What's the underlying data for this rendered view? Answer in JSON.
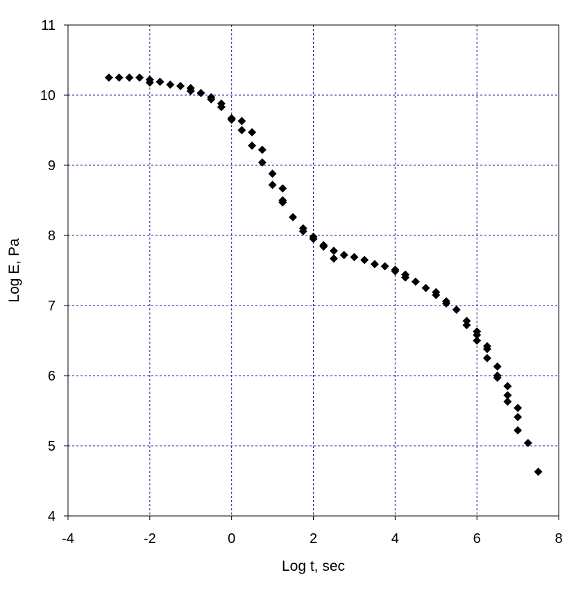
{
  "chart_data": {
    "type": "scatter",
    "title": "",
    "xlabel": "Log t, sec",
    "ylabel": "Log E, Pa",
    "xlim": [
      -4,
      8
    ],
    "ylim": [
      4,
      11
    ],
    "xticks": [
      -4,
      -2,
      0,
      2,
      4,
      6,
      8
    ],
    "yticks": [
      4,
      5,
      6,
      7,
      8,
      9,
      10,
      11
    ],
    "grid": true,
    "legend": "none",
    "colors": {
      "marker": "#000000",
      "grid": "#1a1aa0",
      "frame": "#000000"
    },
    "marker_shape": "diamond",
    "series": [
      {
        "x": [
          -3.0,
          -2.75,
          -2.5,
          -2.25,
          -2.0,
          -2.0,
          -1.75,
          -1.5,
          -1.25,
          -1.0,
          -1.0,
          -0.75,
          -0.5,
          -0.5,
          -0.25,
          -0.25,
          0.0,
          0.0,
          0.25,
          0.25,
          0.5,
          0.5,
          0.75,
          0.75,
          1.0,
          1.0,
          1.25,
          1.25,
          1.25,
          1.5,
          1.75,
          1.75,
          2.0,
          2.0,
          2.25,
          2.25,
          2.5,
          2.5,
          2.75,
          3.0,
          3.25,
          3.5,
          3.75,
          4.0,
          4.0,
          4.25,
          4.25,
          4.5,
          4.75,
          5.0,
          5.0,
          5.25,
          5.25,
          5.5,
          5.75,
          5.75,
          6.0,
          6.0,
          6.0,
          6.25,
          6.25,
          6.25,
          6.5,
          6.5,
          6.5,
          6.75,
          6.75,
          6.75,
          7.0,
          7.0,
          7.0,
          7.25,
          7.5
        ],
        "y": [
          10.25,
          10.25,
          10.25,
          10.25,
          10.22,
          10.18,
          10.19,
          10.15,
          10.13,
          10.1,
          10.06,
          10.03,
          9.97,
          9.94,
          9.88,
          9.83,
          9.67,
          9.65,
          9.63,
          9.5,
          9.47,
          9.28,
          9.22,
          9.04,
          8.88,
          8.72,
          8.67,
          8.5,
          8.47,
          8.26,
          8.1,
          8.06,
          7.98,
          7.95,
          7.86,
          7.84,
          7.78,
          7.67,
          7.72,
          7.69,
          7.65,
          7.59,
          7.56,
          7.51,
          7.49,
          7.44,
          7.4,
          7.34,
          7.25,
          7.19,
          7.15,
          7.06,
          7.03,
          6.94,
          6.78,
          6.72,
          6.63,
          6.58,
          6.5,
          6.42,
          6.38,
          6.25,
          6.13,
          6.0,
          5.97,
          5.85,
          5.72,
          5.63,
          5.54,
          5.41,
          5.22,
          5.04,
          4.63
        ]
      }
    ]
  }
}
